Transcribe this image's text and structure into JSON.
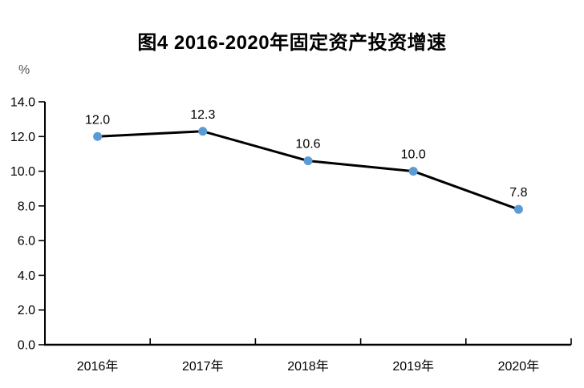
{
  "chart_data": {
    "type": "line",
    "title": "图4 2016-2020年固定资产投资增速",
    "ylabel": "%",
    "xlabel": "",
    "categories": [
      "2016年",
      "2017年",
      "2018年",
      "2019年",
      "2020年"
    ],
    "values": [
      12.0,
      12.3,
      10.6,
      10.0,
      7.8
    ],
    "data_labels": [
      "12.0",
      "12.3",
      "10.6",
      "10.0",
      "7.8"
    ],
    "yticks": [
      "0.0",
      "2.0",
      "4.0",
      "6.0",
      "8.0",
      "10.0",
      "12.0",
      "14.0"
    ],
    "ylim": [
      0,
      14
    ],
    "grid": false,
    "legend": "none",
    "colors": {
      "title_text": "#000000",
      "line": "#000000",
      "marker": "#5B9BD5",
      "axis": "#000000",
      "tick_text": "#000000",
      "unit_label_text": "#595959",
      "background": "#FFFFFF"
    }
  }
}
